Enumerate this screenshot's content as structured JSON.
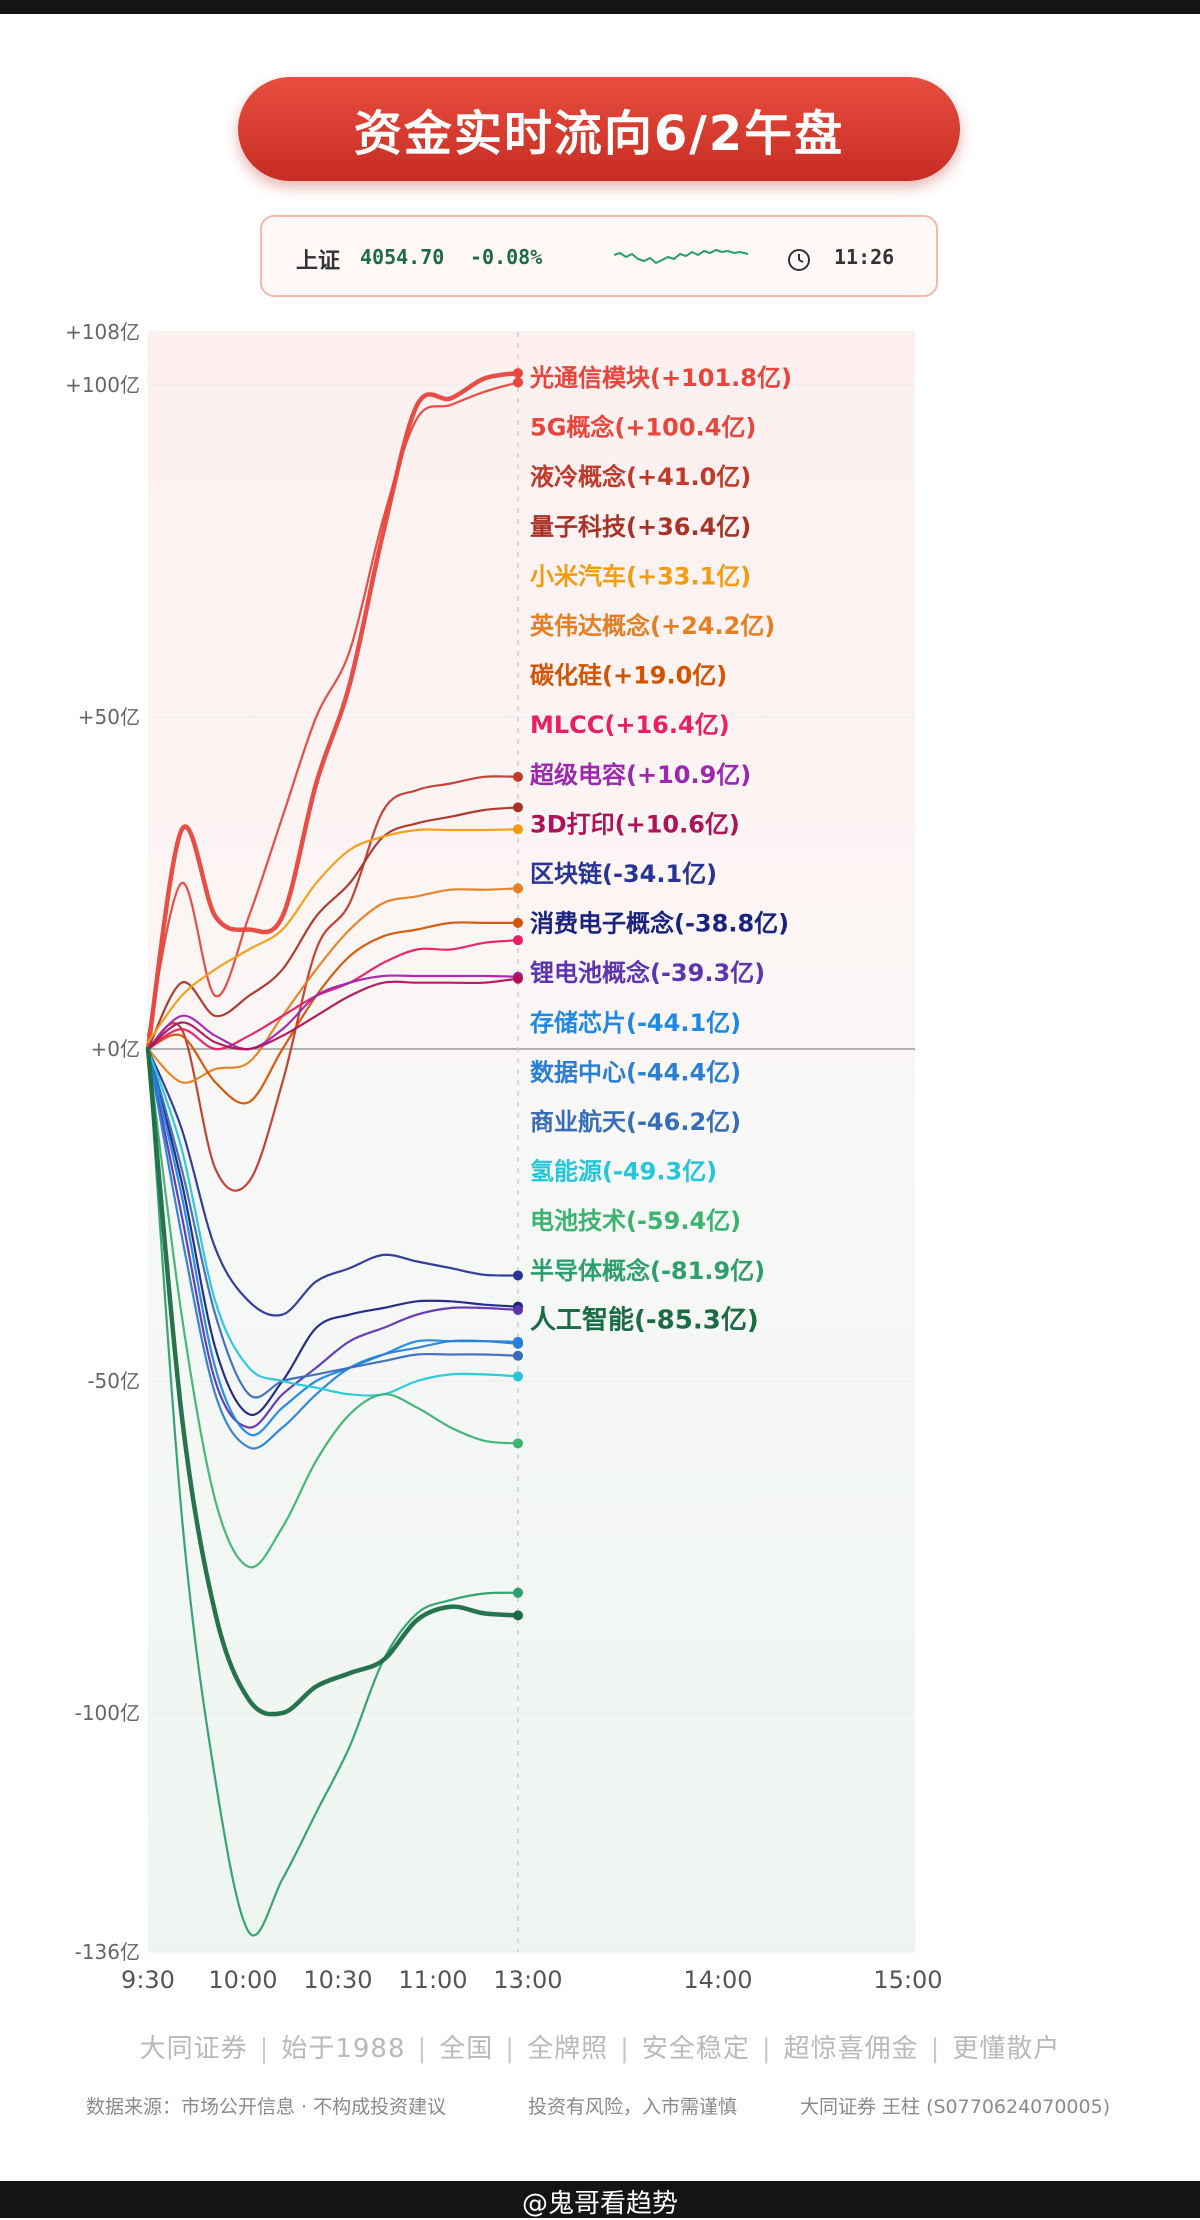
{
  "header": {
    "title": "资金实时流向6/2午盘"
  },
  "index": {
    "name": "上证",
    "value": "4054.70",
    "change": "-0.08%",
    "time": "11:26",
    "clock_icon": "clock-icon",
    "spark_color": "#2a9d68"
  },
  "chart_data": {
    "type": "line",
    "title": "资金实时流向6/2午盘",
    "xlabel": "",
    "ylabel": "",
    "x_ticks": [
      "9:30",
      "10:00",
      "10:30",
      "11:00",
      "13:00",
      "14:00",
      "15:00"
    ],
    "y_ticks": [
      "+108亿",
      "+100亿",
      "+50亿",
      "+0亿",
      "-50亿",
      "-100亿",
      "-136亿"
    ],
    "ylim": [
      -136,
      108
    ],
    "x": [
      "9:30",
      "9:40",
      "9:50",
      "10:00",
      "10:10",
      "10:20",
      "10:30",
      "10:45",
      "11:00",
      "11:10",
      "11:20",
      "11:30/13:00"
    ],
    "grid": true,
    "series": [
      {
        "name": "光通信模块",
        "label": "光通信模块(+101.8亿)",
        "color": "#e8453c",
        "values": [
          0,
          33,
          20,
          18,
          20,
          40,
          55,
          78,
          97,
          98,
          101,
          101.8
        ]
      },
      {
        "name": "5G概念",
        "label": "5G概念(+100.4亿)",
        "color": "#e8453c",
        "values": [
          2,
          25,
          8,
          20,
          35,
          50,
          60,
          80,
          95,
          97,
          99,
          100.4
        ]
      },
      {
        "name": "液冷概念",
        "label": "液冷概念(+41.0亿)",
        "color": "#c0392b",
        "values": [
          0,
          3,
          -18,
          -20,
          -5,
          15,
          22,
          36,
          39,
          40,
          41,
          41.0
        ]
      },
      {
        "name": "量子科技",
        "label": "量子科技(+36.4亿)",
        "color": "#a93226",
        "values": [
          0,
          10,
          5,
          8,
          12,
          20,
          25,
          32,
          34,
          35,
          36,
          36.4
        ]
      },
      {
        "name": "小米汽车",
        "label": "小米汽车(+33.1亿)",
        "color": "#f39c12",
        "values": [
          1,
          8,
          12,
          15,
          18,
          25,
          30,
          32,
          33,
          33,
          33,
          33.1
        ]
      },
      {
        "name": "英伟达概念",
        "label": "英伟达概念(+24.2亿)",
        "color": "#e67e22",
        "values": [
          0,
          -5,
          -3,
          -2,
          5,
          12,
          18,
          22,
          23,
          24,
          24,
          24.2
        ]
      },
      {
        "name": "碳化硅",
        "label": "碳化硅(+19.0亿)",
        "color": "#d35400",
        "values": [
          0,
          2,
          -5,
          -8,
          0,
          8,
          14,
          17,
          18,
          19,
          19,
          19.0
        ]
      },
      {
        "name": "MLCC",
        "label": "MLCC(+16.4亿)",
        "color": "#e91e63",
        "values": [
          0,
          3,
          0,
          2,
          5,
          8,
          10,
          13,
          15,
          15,
          16,
          16.4
        ]
      },
      {
        "name": "超级电容",
        "label": "超级电容(+10.9亿)",
        "color": "#9c27b0",
        "values": [
          0,
          5,
          2,
          0,
          3,
          8,
          10,
          11,
          11,
          11,
          11,
          10.9
        ]
      },
      {
        "name": "3D打印",
        "label": "3D打印(+10.6亿)",
        "color": "#ad1457",
        "values": [
          0,
          4,
          1,
          0,
          2,
          5,
          8,
          10,
          10,
          10,
          10,
          10.6
        ]
      },
      {
        "name": "区块链",
        "label": "区块链(-34.1亿)",
        "color": "#283593",
        "values": [
          0,
          -12,
          -30,
          -38,
          -40,
          -35,
          -33,
          -31,
          -32,
          -33,
          -34,
          -34.1
        ]
      },
      {
        "name": "消费电子概念",
        "label": "消费电子概念(-38.8亿)",
        "color": "#1a237e",
        "values": [
          0,
          -20,
          -45,
          -55,
          -50,
          -42,
          -40,
          -39,
          -38,
          -38,
          -38.5,
          -38.8
        ]
      },
      {
        "name": "锂电池概念",
        "label": "锂电池概念(-39.3亿)",
        "color": "#5e35b1",
        "values": [
          0,
          -25,
          -50,
          -57,
          -52,
          -48,
          -44,
          -42,
          -40,
          -39,
          -39,
          -39.3
        ]
      },
      {
        "name": "存储芯片",
        "label": "存储芯片(-44.1亿)",
        "color": "#1e88e5",
        "values": [
          0,
          -22,
          -48,
          -58,
          -54,
          -50,
          -48,
          -46,
          -44,
          -44,
          -44,
          -44.1
        ]
      },
      {
        "name": "数据中心",
        "label": "数据中心(-44.4亿)",
        "color": "#2a7fd4",
        "values": [
          0,
          -28,
          -52,
          -60,
          -57,
          -52,
          -48,
          -46,
          -45,
          -44,
          -44,
          -44.4
        ]
      },
      {
        "name": "商业航天",
        "label": "商业航天(-46.2亿)",
        "color": "#3a6db8",
        "values": [
          0,
          -18,
          -40,
          -52,
          -50,
          -49,
          -48,
          -47,
          -46,
          -46,
          -46,
          -46.2
        ]
      },
      {
        "name": "氢能源",
        "label": "氢能源(-49.3亿)",
        "color": "#26c6da",
        "values": [
          0,
          -15,
          -38,
          -48,
          -50,
          -51,
          -52,
          -52,
          -50,
          -49,
          -49,
          -49.3
        ]
      },
      {
        "name": "电池技术",
        "label": "电池技术(-59.4亿)",
        "color": "#3cb371",
        "values": [
          0,
          -40,
          -68,
          -78,
          -72,
          -62,
          -55,
          -52,
          -54,
          -57,
          -59,
          -59.4
        ]
      },
      {
        "name": "半导体概念",
        "label": "半导体概念(-81.9亿)",
        "color": "#2e9e6e",
        "values": [
          0,
          -70,
          -110,
          -133,
          -125,
          -115,
          -105,
          -92,
          -85,
          -83,
          -82,
          -81.9
        ]
      },
      {
        "name": "人工智能",
        "label": "人工智能(-85.3亿)",
        "color": "#1b6b45",
        "values": [
          0,
          -55,
          -85,
          -98,
          -100,
          -96,
          -94,
          -92,
          -86,
          -84,
          -85,
          -85.3
        ]
      }
    ]
  },
  "footer": {
    "tags": [
      "大同证券",
      "始于1988",
      "全国",
      "全牌照",
      "安全稳定",
      "超惊喜佣金",
      "更懂散户"
    ],
    "source": "数据来源：市场公开信息 · 不构成投资建议",
    "risk": "投资有风险，入市需谨慎",
    "broker": "大同证券 王柱 (S0770624070005)"
  },
  "watermark": "@鬼哥看趋势"
}
